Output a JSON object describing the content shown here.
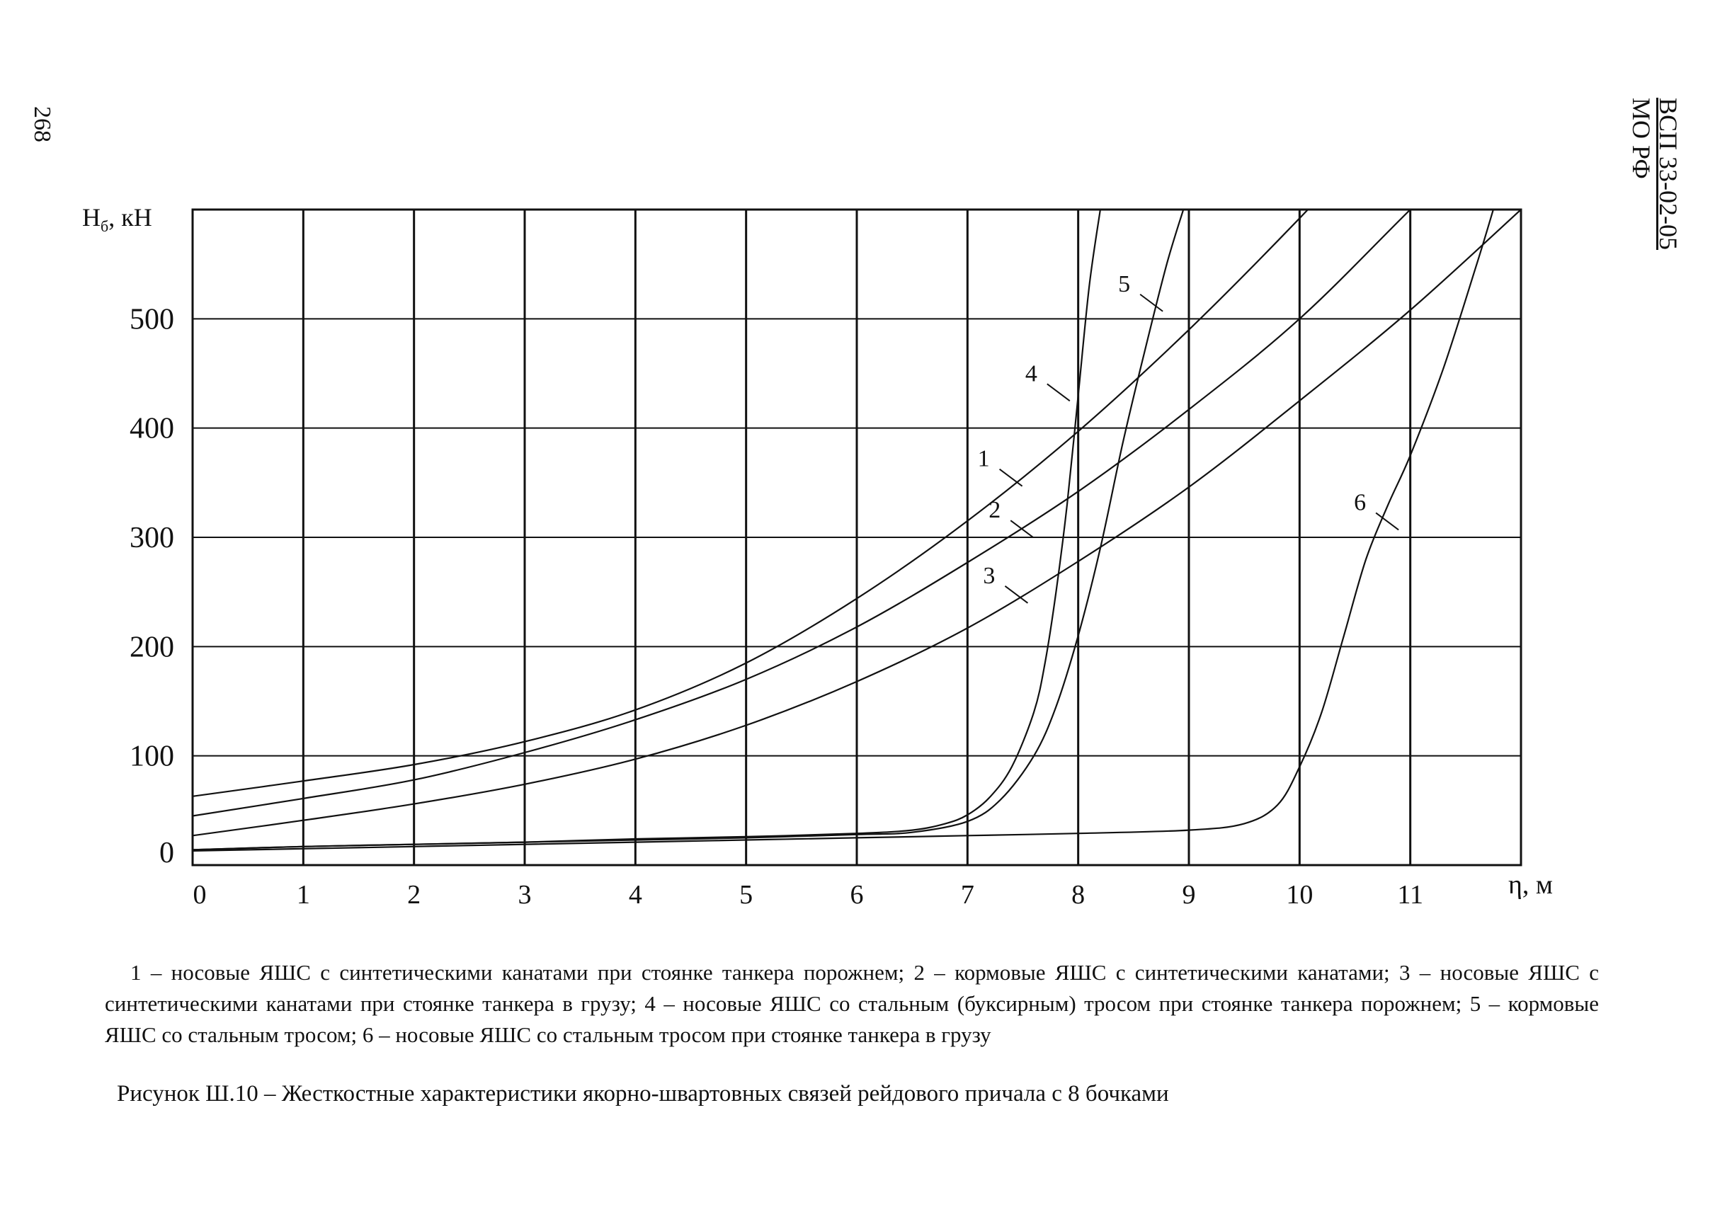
{
  "page": {
    "number": "268",
    "doc_code": "ВСП 33-02-05",
    "org": "МО РФ"
  },
  "legend_text": "1 – носовые ЯШС с синтетическими канатами при стоянке танкера порожнем; 2 – кормовые ЯШС с синтетическими канатами; 3 – носовые ЯШС с синтетическими канатами при стоянке танкера в грузу; 4 – носовые ЯШС со стальным (буксирным) тросом при стоянке танкера порожнем; 5 – кормовые ЯШС со стальным тросом; 6 – носовые ЯШС со стальным тросом при стоянке танкера в грузу",
  "caption": "Рисунок Ш.10 – Жесткостные характеристики якорно-швартовных связей рейдового причала с 8 бочками",
  "chart_data": {
    "type": "line",
    "ylabel_main": "H",
    "ylabel_sub": "б",
    "ylabel_unit": ", кН",
    "xlabel_symbol": "η",
    "xlabel_unit": ", м",
    "xlim": [
      0,
      12
    ],
    "ylim": [
      0,
      600
    ],
    "x_ticks": [
      0,
      1,
      2,
      3,
      4,
      5,
      6,
      7,
      8,
      9,
      10,
      11
    ],
    "y_ticks": [
      0,
      100,
      200,
      300,
      400,
      500
    ],
    "y_tick_labels": [
      "0",
      "100",
      "200",
      "300",
      "400",
      "500"
    ],
    "grid": true,
    "line_color": "#111111",
    "series": [
      {
        "name": "1",
        "x": [
          0,
          1,
          2,
          3,
          4,
          5,
          6,
          7,
          8,
          9,
          10,
          11
        ],
        "y": [
          63,
          77,
          92,
          113,
          142,
          185,
          244,
          315,
          397,
          490,
          592,
          700
        ],
        "label_x": 7.2,
        "label_y": 365
      },
      {
        "name": "2",
        "x": [
          0,
          1,
          2,
          3,
          4,
          5,
          6,
          7,
          8,
          9,
          10,
          11,
          12
        ],
        "y": [
          45,
          61,
          78,
          103,
          133,
          170,
          218,
          277,
          342,
          417,
          500,
          600,
          700
        ],
        "label_x": 7.3,
        "label_y": 318
      },
      {
        "name": "3",
        "x": [
          0,
          1,
          2,
          3,
          4,
          5,
          6,
          7,
          8,
          9,
          10,
          11,
          12
        ],
        "y": [
          27,
          41,
          56,
          74,
          97,
          128,
          168,
          217,
          278,
          346,
          425,
          508,
          600
        ],
        "label_x": 7.25,
        "label_y": 258
      },
      {
        "name": "4",
        "x": [
          0,
          1,
          2,
          3,
          4,
          5,
          6,
          6.5,
          6.8,
          7,
          7.2,
          7.4,
          7.6,
          7.7,
          7.8,
          7.9,
          8,
          8.1,
          8.2
        ],
        "y": [
          14,
          17,
          19,
          21,
          24,
          26,
          29,
          32,
          38,
          46,
          62,
          90,
          140,
          185,
          250,
          330,
          430,
          530,
          600
        ],
        "label_x": 7.63,
        "label_y": 443
      },
      {
        "name": "5",
        "x": [
          0,
          1,
          2,
          3,
          4,
          5,
          6,
          6.5,
          7,
          7.3,
          7.6,
          7.8,
          8,
          8.2,
          8.4,
          8.6,
          8.8,
          8.95
        ],
        "y": [
          14,
          17,
          19,
          21,
          23,
          25,
          28,
          30,
          40,
          60,
          100,
          145,
          210,
          290,
          385,
          470,
          550,
          600
        ],
        "label_x": 8.47,
        "label_y": 525
      },
      {
        "name": "6",
        "x": [
          0,
          2,
          4,
          6,
          7,
          8,
          9,
          9.5,
          9.8,
          10,
          10.2,
          10.4,
          10.6,
          10.8,
          11,
          11.3,
          11.6,
          11.75
        ],
        "y": [
          13,
          17,
          21,
          25,
          27,
          29,
          32,
          38,
          55,
          90,
          140,
          210,
          280,
          330,
          375,
          455,
          550,
          600
        ],
        "label_x": 10.6,
        "label_y": 325
      }
    ]
  }
}
